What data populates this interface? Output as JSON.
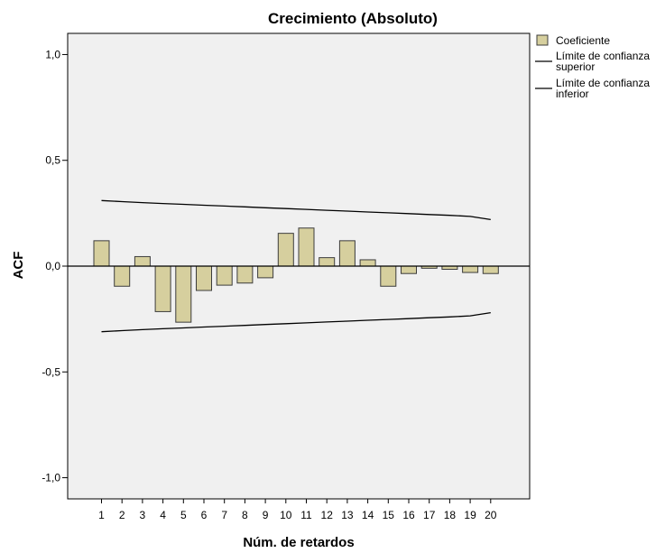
{
  "chart_data": {
    "type": "bar",
    "title": "Crecimiento (Absoluto)",
    "xlabel": "Núm. de retardos",
    "ylabel": "ACF",
    "categories": [
      "1",
      "2",
      "3",
      "4",
      "5",
      "6",
      "7",
      "8",
      "9",
      "10",
      "11",
      "12",
      "13",
      "14",
      "15",
      "16",
      "17",
      "18",
      "19",
      "20"
    ],
    "series": [
      {
        "name": "Coeficiente",
        "values": [
          0.12,
          -0.095,
          0.045,
          -0.215,
          -0.265,
          -0.115,
          -0.09,
          -0.08,
          -0.055,
          0.155,
          0.18,
          0.04,
          0.12,
          0.03,
          -0.095,
          -0.035,
          -0.01,
          -0.015,
          -0.03,
          -0.035
        ]
      },
      {
        "name": "Límite de confianza superior",
        "values": [
          0.31,
          0.305,
          0.3,
          0.296,
          0.292,
          0.288,
          0.284,
          0.28,
          0.276,
          0.272,
          0.268,
          0.264,
          0.26,
          0.256,
          0.252,
          0.248,
          0.244,
          0.24,
          0.235,
          0.22
        ]
      },
      {
        "name": "Límite de confianza inferior",
        "values": [
          -0.31,
          -0.305,
          -0.3,
          -0.296,
          -0.292,
          -0.288,
          -0.284,
          -0.28,
          -0.276,
          -0.272,
          -0.268,
          -0.264,
          -0.26,
          -0.256,
          -0.252,
          -0.248,
          -0.244,
          -0.24,
          -0.235,
          -0.22
        ]
      }
    ],
    "yticks": [
      "1,0",
      "0,5",
      "0,0",
      "-0,5",
      "-1,0"
    ],
    "ytick_values": [
      1.0,
      0.5,
      0.0,
      -0.5,
      -1.0
    ],
    "ylim": [
      -1.1,
      1.1
    ],
    "grid": false,
    "legend": {
      "position": "right-top",
      "entries": [
        {
          "lines": [
            "Coeficiente"
          ]
        },
        {
          "lines": [
            "Límite de confianza",
            "superior"
          ]
        },
        {
          "lines": [
            "Límite de confianza",
            "inferior"
          ]
        }
      ]
    },
    "colors": {
      "plot_background": "#f0f0f0",
      "bar_fill": "#d6cf9e",
      "bar_stroke": "#3c3c3c",
      "line": "#000000"
    }
  }
}
